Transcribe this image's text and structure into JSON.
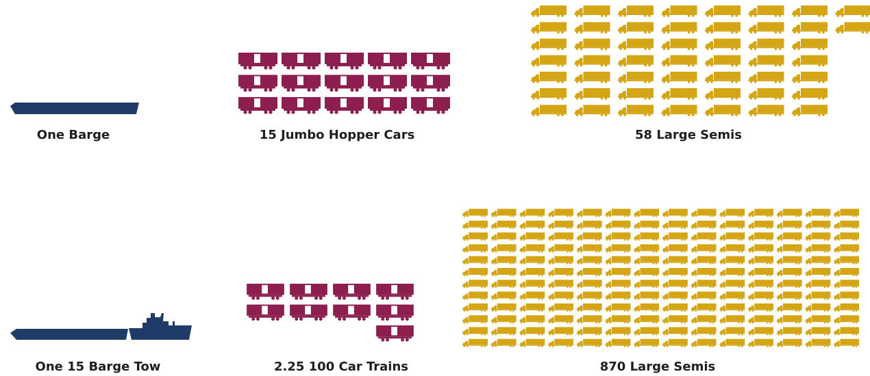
{
  "top": {
    "barge_label": "One Barge",
    "cars_label": "15 Jumbo Hopper Cars",
    "semis_label": "58 Large Semis"
  },
  "bottom": {
    "tow_label": "One 15 Barge Tow",
    "trains_label": "2.25 100 Car Trains",
    "semis_label": "870 Large Semis"
  }
}
